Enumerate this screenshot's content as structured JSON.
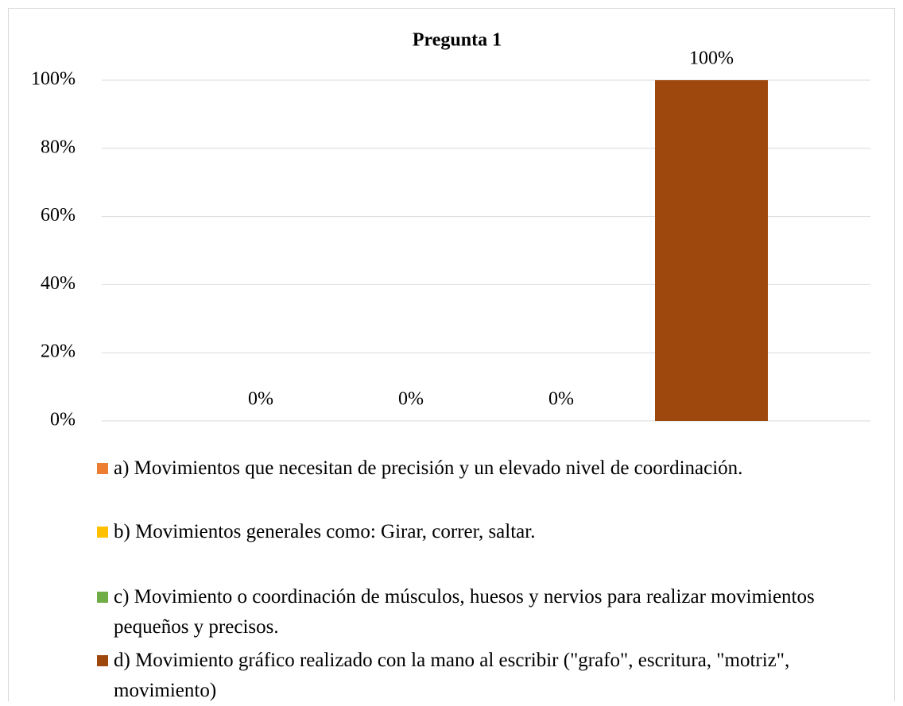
{
  "chart_data": {
    "type": "bar",
    "title": "Pregunta 1",
    "categories": [
      null
    ],
    "series": [
      {
        "name": "a) Movimientos que necesitan de precisión y un elevado nivel de coordinación.",
        "color": "#ed7d31",
        "values": [
          0
        ],
        "value_labels": [
          "0%"
        ]
      },
      {
        "name": "b) Movimientos generales como: Girar, correr, saltar.",
        "color": "#ffc000",
        "values": [
          0
        ],
        "value_labels": [
          "0%"
        ]
      },
      {
        "name": "c) Movimiento o coordinación de músculos, huesos y nervios para realizar movimientos pequeños y precisos.",
        "color": "#70ad47",
        "values": [
          0
        ],
        "value_labels": [
          "0%"
        ]
      },
      {
        "name": "d) Movimiento gráfico realizado con la mano al escribir (\"grafo\", escritura, \"motriz\", movimiento)",
        "color": "#9e480e",
        "values": [
          100
        ],
        "value_labels": [
          "100%"
        ]
      }
    ],
    "ylim": [
      0,
      100
    ],
    "yticks": [
      {
        "value": 0,
        "label": "0%"
      },
      {
        "value": 20,
        "label": "20%"
      },
      {
        "value": 40,
        "label": "40%"
      },
      {
        "value": 60,
        "label": "60%"
      },
      {
        "value": 80,
        "label": "80%"
      },
      {
        "value": 100,
        "label": "100%"
      }
    ],
    "grid": true
  }
}
